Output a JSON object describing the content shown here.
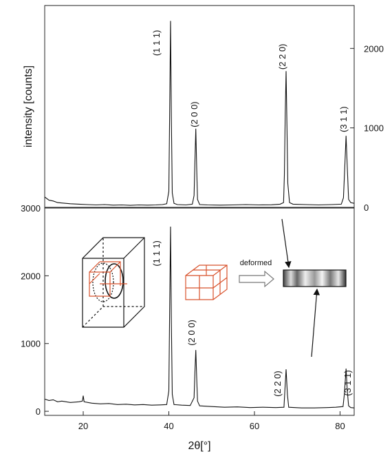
{
  "chart_data": [
    {
      "type": "line",
      "ylabel": "intensity [counts]",
      "xlim": [
        11,
        83.3
      ],
      "y2lim": [
        0,
        2540
      ],
      "y2ticks": [
        0,
        1000,
        2000
      ],
      "x": [
        11,
        12,
        13,
        14,
        15,
        17,
        19,
        21,
        23,
        25,
        27,
        29,
        31,
        33,
        35,
        37,
        38.5,
        39.5,
        40,
        40.2,
        40.4,
        40.6,
        40.8,
        41.2,
        42,
        44,
        45.5,
        45.9,
        46.1,
        46.3,
        46.5,
        46.7,
        47.2,
        49,
        52,
        55,
        58,
        61,
        64,
        66,
        66.8,
        67,
        67.2,
        67.4,
        67.6,
        67.8,
        68.2,
        69,
        72,
        75,
        78,
        80.3,
        80.8,
        81.1,
        81.4,
        81.7,
        82,
        82.5,
        83.3
      ],
      "series": [
        {
          "color": "#111111",
          "axis": "y2",
          "values": [
            130,
            90,
            80,
            60,
            55,
            45,
            40,
            35,
            30,
            35,
            28,
            30,
            25,
            30,
            28,
            30,
            35,
            45,
            200,
            1200,
            2346,
            1100,
            180,
            50,
            35,
            30,
            40,
            150,
            600,
            990,
            500,
            100,
            35,
            30,
            28,
            30,
            35,
            30,
            32,
            40,
            60,
            400,
            1200,
            1714,
            1000,
            300,
            60,
            40,
            35,
            30,
            35,
            40,
            120,
            500,
            900,
            500,
            100,
            60,
            50
          ]
        }
      ],
      "annotations": [
        {
          "text": "(1 1 1)",
          "x": 37.8,
          "y": 2069
        },
        {
          "text": "(2 0 0)",
          "x": 46.7,
          "y": 1169
        },
        {
          "text": "(2 2 0)",
          "x": 67.2,
          "y": 1896
        },
        {
          "text": "(3 1 1)",
          "x": 81.5,
          "y": 1108
        }
      ]
    },
    {
      "type": "line",
      "xlabel": "2θ[°]",
      "xlim": [
        11,
        83.3
      ],
      "xticks": [
        20,
        40,
        60,
        80
      ],
      "ylim": [
        -60,
        3000
      ],
      "yticks": [
        0,
        1000,
        2000,
        3000
      ],
      "x": [
        11,
        12,
        13,
        14,
        15,
        17,
        19,
        19.8,
        20,
        20.2,
        22,
        24,
        26,
        28,
        30,
        32,
        34,
        36,
        38,
        39.5,
        40,
        40.2,
        40.4,
        40.6,
        40.8,
        41.2,
        43,
        45,
        45.9,
        46.1,
        46.3,
        46.5,
        46.7,
        47.2,
        50,
        53,
        56,
        59,
        62,
        65,
        66.9,
        67.1,
        67.4,
        67.7,
        68,
        71,
        74,
        77,
        79,
        80.7,
        81,
        81.4,
        81.7,
        82,
        82.5,
        83.3
      ],
      "series": [
        {
          "color": "#111111",
          "values": [
            180,
            160,
            170,
            140,
            150,
            130,
            140,
            150,
            230,
            140,
            120,
            110,
            115,
            100,
            105,
            95,
            100,
            90,
            95,
            100,
            300,
            1500,
            2726,
            1300,
            250,
            100,
            90,
            85,
            200,
            600,
            905,
            500,
            150,
            80,
            70,
            60,
            65,
            55,
            60,
            55,
            60,
            300,
            620,
            250,
            60,
            50,
            50,
            55,
            60,
            70,
            250,
            630,
            300,
            80,
            55,
            50
          ]
        }
      ],
      "annotations": [
        {
          "text": "(1 1 1)",
          "x": 37.8,
          "y": 2330
        },
        {
          "text": "(2 0 0)",
          "x": 46.0,
          "y": 1160
        },
        {
          "text": "(2 2 0)",
          "x": 66.1,
          "y": 407
        },
        {
          "text": "(3 1 1)",
          "x": 82.5,
          "y": 417
        }
      ]
    }
  ],
  "inset": {
    "label": "deformed"
  }
}
